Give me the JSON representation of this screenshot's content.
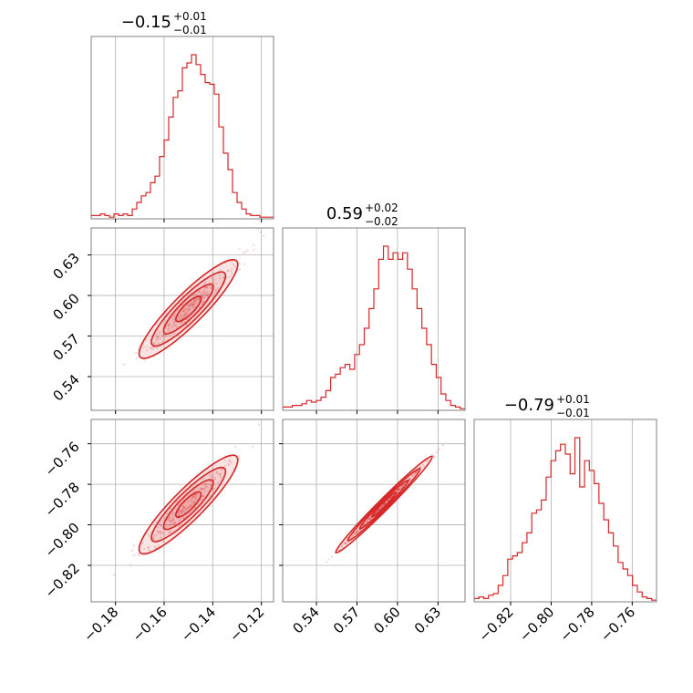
{
  "chart_data": {
    "type": "corner",
    "color": "#d62728",
    "params": [
      {
        "name": "p0",
        "median": -0.15,
        "plus": "0.01",
        "minus": "0.01",
        "label": "−0.15",
        "range": [
          -0.19,
          -0.115
        ],
        "ticks": [
          -0.18,
          -0.16,
          -0.14,
          -0.12
        ],
        "tick_labels": [
          "−0.18",
          "−0.16",
          "−0.14",
          "−0.12"
        ]
      },
      {
        "name": "p1",
        "median": 0.59,
        "plus": "0.02",
        "minus": "0.02",
        "label": "0.59",
        "range": [
          0.515,
          0.65
        ],
        "ticks": [
          0.54,
          0.57,
          0.6,
          0.63
        ],
        "tick_labels": [
          "0.54",
          "0.57",
          "0.60",
          "0.63"
        ]
      },
      {
        "name": "p2",
        "median": -0.79,
        "plus": "0.01",
        "minus": "0.01",
        "label": "−0.79",
        "range": [
          -0.838,
          -0.748
        ],
        "ticks": [
          -0.82,
          -0.8,
          -0.78,
          -0.76
        ],
        "tick_labels": [
          "−0.82",
          "−0.80",
          "−0.78",
          "−0.76"
        ]
      }
    ],
    "hist": [
      [
        0.02,
        0.02,
        0.03,
        0.02,
        0.01,
        0.03,
        0.02,
        0.03,
        0.02,
        0.06,
        0.1,
        0.14,
        0.16,
        0.22,
        0.26,
        0.38,
        0.48,
        0.62,
        0.74,
        0.78,
        0.92,
        0.95,
        1.0,
        0.94,
        0.88,
        0.83,
        0.82,
        0.76,
        0.56,
        0.4,
        0.3,
        0.16,
        0.1,
        0.06,
        0.03,
        0.02,
        0.02,
        0.01,
        0.01,
        0.01
      ],
      [
        0.02,
        0.02,
        0.03,
        0.03,
        0.04,
        0.06,
        0.05,
        0.06,
        0.08,
        0.12,
        0.2,
        0.22,
        0.26,
        0.28,
        0.25,
        0.34,
        0.4,
        0.5,
        0.62,
        0.74,
        0.92,
        1.0,
        0.92,
        0.96,
        0.92,
        0.96,
        0.86,
        0.74,
        0.62,
        0.5,
        0.4,
        0.28,
        0.2,
        0.1,
        0.06,
        0.03,
        0.02,
        0.01
      ],
      [
        0.02,
        0.03,
        0.02,
        0.04,
        0.05,
        0.1,
        0.16,
        0.26,
        0.28,
        0.3,
        0.36,
        0.42,
        0.54,
        0.56,
        0.62,
        0.76,
        0.86,
        0.92,
        0.96,
        0.9,
        0.78,
        1.0,
        0.7,
        0.86,
        0.8,
        0.72,
        0.6,
        0.5,
        0.42,
        0.34,
        0.24,
        0.2,
        0.16,
        0.1,
        0.06,
        0.03,
        0.02,
        0.01
      ]
    ]
  }
}
